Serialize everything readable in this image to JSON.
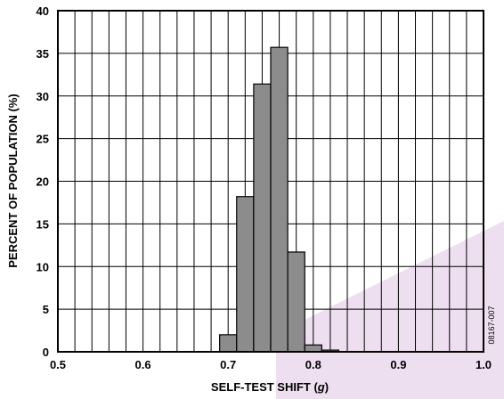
{
  "chart_data": {
    "type": "bar",
    "histogram": true,
    "xlabel_prefix": "SELF-TEST SHIFT (",
    "xlabel_unit": "g",
    "xlabel_suffix": ")",
    "ylabel": "PERCENT OF POPULATION (%)",
    "xlim": [
      0.5,
      1.0
    ],
    "ylim": [
      0,
      40
    ],
    "x_ticks": [
      0.5,
      0.6,
      0.7,
      0.8,
      0.9,
      1.0
    ],
    "x_tick_labels": [
      "0.5",
      "0.6",
      "0.7",
      "0.8",
      "0.9",
      "1.0"
    ],
    "y_ticks": [
      0,
      5,
      10,
      15,
      20,
      25,
      30,
      35,
      40
    ],
    "y_tick_labels": [
      "0",
      "5",
      "10",
      "15",
      "20",
      "25",
      "30",
      "35",
      "40"
    ],
    "grid": true,
    "vertical_grid_step": 0.02,
    "horizontal_grid_step": 5,
    "bin_width": 0.02,
    "bins": [
      {
        "start": 0.69,
        "value": 2.0
      },
      {
        "start": 0.71,
        "value": 18.2
      },
      {
        "start": 0.73,
        "value": 31.4
      },
      {
        "start": 0.75,
        "value": 35.7
      },
      {
        "start": 0.77,
        "value": 11.7
      },
      {
        "start": 0.79,
        "value": 0.8
      },
      {
        "start": 0.81,
        "value": 0.2
      }
    ],
    "bar_color": "#8c8c8c",
    "bar_edge_color": "#000000",
    "watermark_color": "#eedff0",
    "figure_id": "08167-007"
  }
}
